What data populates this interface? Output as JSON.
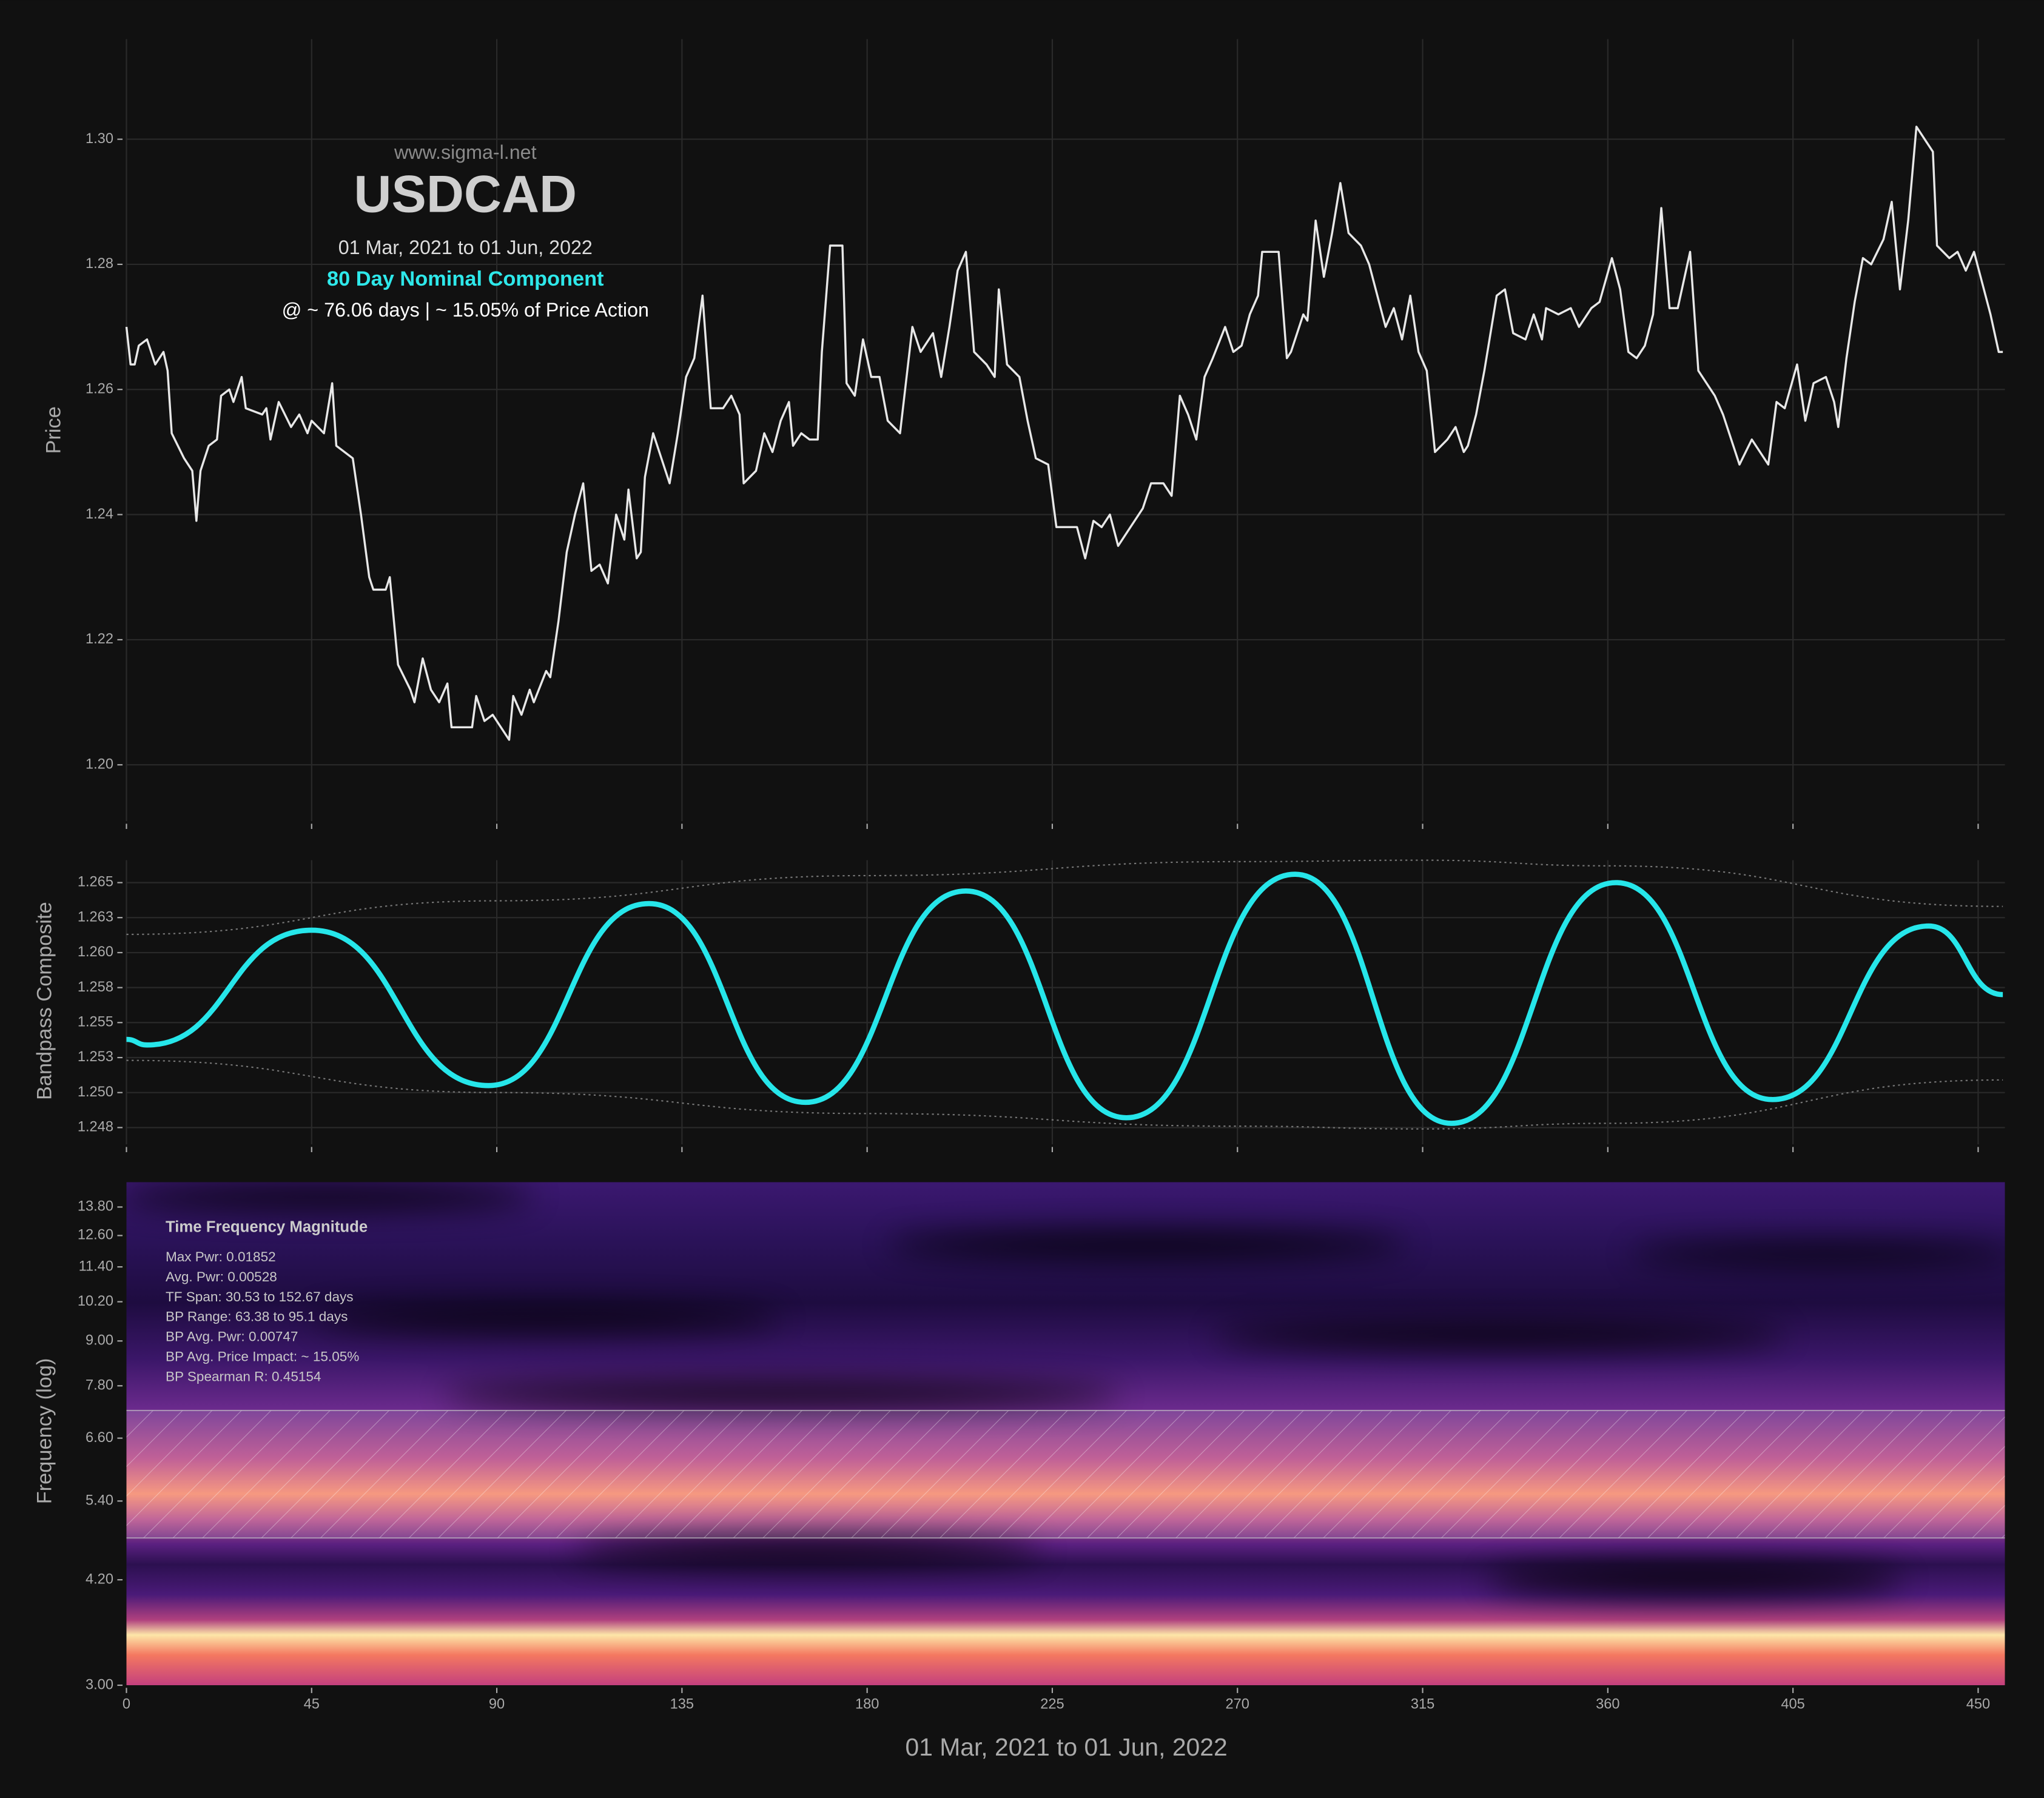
{
  "chart_data": [
    {
      "type": "line",
      "watermark": "www.sigma-l.net",
      "title": "USDCAD",
      "subtitle": "01 Mar, 2021 to 01 Jun, 2022",
      "component": "80 Day Nominal Component",
      "caption": "@ ~ 76.06 days | ~ 15.05% of Price Action",
      "ylabel": "Price",
      "grid": true,
      "xlim": [
        0,
        456.5
      ],
      "ylim": [
        1.191,
        1.316
      ],
      "yticks": [
        {
          "value": 1.2,
          "label": "1.20"
        },
        1.22,
        1.24,
        1.26,
        1.28,
        {
          "value": 1.3,
          "label": "1.30"
        }
      ],
      "series": [
        {
          "color": "#e8e8e8",
          "x": [
            0,
            1,
            2,
            3,
            5,
            7,
            9,
            10,
            11,
            14,
            16,
            17,
            18,
            20,
            22,
            23,
            25,
            26,
            28,
            29,
            33,
            34,
            35,
            37,
            40,
            42,
            44,
            45,
            48,
            50,
            51,
            55,
            57,
            59,
            60,
            63,
            64,
            66,
            69,
            70,
            72,
            74,
            76,
            78,
            79,
            81,
            83,
            84,
            85,
            87,
            89,
            91,
            93,
            94,
            96,
            98,
            99,
            102,
            103,
            105,
            107,
            109,
            111,
            113,
            115,
            117,
            119,
            121,
            122,
            124,
            125,
            126,
            128,
            130,
            132,
            134,
            136,
            138,
            140,
            142,
            145,
            147,
            149,
            150,
            153,
            155,
            157,
            159,
            161,
            162,
            164,
            166,
            168,
            169,
            171,
            174,
            175,
            177,
            179,
            181,
            183,
            185,
            188,
            191,
            193,
            196,
            198,
            200,
            202,
            204,
            206,
            209,
            211,
            212,
            214,
            217,
            219,
            221,
            224,
            226,
            229,
            231,
            233,
            235,
            237,
            239,
            241,
            244,
            245,
            247,
            249,
            252,
            254,
            256,
            258,
            260,
            262,
            264,
            267,
            269,
            271,
            273,
            275,
            276,
            280,
            282,
            283,
            286,
            287,
            289,
            291,
            293,
            295,
            297,
            300,
            302,
            304,
            306,
            308,
            310,
            312,
            314,
            316,
            318,
            321,
            323,
            325,
            326,
            328,
            330,
            333,
            335,
            337,
            340,
            342,
            344,
            345,
            348,
            351,
            353,
            356,
            358,
            361,
            363,
            365,
            367,
            369,
            371,
            373,
            375,
            377,
            380,
            382,
            384,
            386,
            388,
            390,
            392,
            395,
            397,
            399,
            401,
            403,
            406,
            408,
            410,
            413,
            415,
            416,
            418,
            420,
            422,
            424,
            427,
            429,
            431,
            433,
            435,
            437,
            439,
            440,
            443,
            445,
            447,
            449,
            451,
            453,
            455,
            456
          ],
          "values": [
            1.27,
            1.264,
            1.264,
            1.267,
            1.268,
            1.264,
            1.266,
            1.263,
            1.253,
            1.249,
            1.247,
            1.239,
            1.247,
            1.251,
            1.252,
            1.259,
            1.26,
            1.258,
            1.262,
            1.257,
            1.256,
            1.257,
            1.252,
            1.258,
            1.254,
            1.256,
            1.253,
            1.255,
            1.253,
            1.261,
            1.251,
            1.249,
            1.24,
            1.23,
            1.228,
            1.228,
            1.23,
            1.216,
            1.212,
            1.21,
            1.217,
            1.212,
            1.21,
            1.213,
            1.206,
            1.206,
            1.206,
            1.206,
            1.211,
            1.207,
            1.208,
            1.206,
            1.204,
            1.211,
            1.208,
            1.212,
            1.21,
            1.215,
            1.214,
            1.223,
            1.234,
            1.24,
            1.245,
            1.231,
            1.232,
            1.229,
            1.24,
            1.236,
            1.244,
            1.233,
            1.234,
            1.246,
            1.253,
            1.249,
            1.245,
            1.253,
            1.262,
            1.265,
            1.275,
            1.257,
            1.257,
            1.259,
            1.256,
            1.245,
            1.247,
            1.253,
            1.25,
            1.255,
            1.258,
            1.251,
            1.253,
            1.252,
            1.252,
            1.266,
            1.283,
            1.283,
            1.261,
            1.259,
            1.268,
            1.262,
            1.262,
            1.255,
            1.253,
            1.27,
            1.266,
            1.269,
            1.262,
            1.27,
            1.279,
            1.282,
            1.266,
            1.264,
            1.262,
            1.276,
            1.264,
            1.262,
            1.255,
            1.249,
            1.248,
            1.238,
            1.238,
            1.238,
            1.233,
            1.239,
            1.238,
            1.24,
            1.235,
            1.238,
            1.239,
            1.241,
            1.245,
            1.245,
            1.243,
            1.259,
            1.256,
            1.252,
            1.262,
            1.265,
            1.27,
            1.266,
            1.267,
            1.272,
            1.275,
            1.282,
            1.282,
            1.265,
            1.266,
            1.272,
            1.271,
            1.287,
            1.278,
            1.285,
            1.293,
            1.285,
            1.283,
            1.28,
            1.275,
            1.27,
            1.273,
            1.268,
            1.275,
            1.266,
            1.263,
            1.25,
            1.252,
            1.254,
            1.25,
            1.251,
            1.256,
            1.263,
            1.275,
            1.276,
            1.269,
            1.268,
            1.272,
            1.268,
            1.273,
            1.272,
            1.273,
            1.27,
            1.273,
            1.274,
            1.281,
            1.276,
            1.266,
            1.265,
            1.267,
            1.272,
            1.289,
            1.273,
            1.273,
            1.282,
            1.263,
            1.261,
            1.259,
            1.256,
            1.252,
            1.248,
            1.252,
            1.25,
            1.248,
            1.258,
            1.257,
            1.264,
            1.255,
            1.261,
            1.262,
            1.258,
            1.254,
            1.265,
            1.274,
            1.281,
            1.28,
            1.284,
            1.29,
            1.276,
            1.287,
            1.302,
            1.3,
            1.298,
            1.283,
            1.281,
            1.282,
            1.279,
            1.282,
            1.277,
            1.272,
            1.266,
            1.266
          ]
        }
      ]
    },
    {
      "type": "spline",
      "ylabel": "Bandpass Composite",
      "grid": true,
      "xlim": [
        0,
        456.5
      ],
      "ylim": [
        1.2463,
        1.2666
      ],
      "yticks": [
        {
          "value": 1.2475,
          "label": "1.248"
        },
        {
          "value": 1.25,
          "label": "1.250"
        },
        {
          "value": 1.2525,
          "label": "1.253"
        },
        {
          "value": 1.255,
          "label": "1.255"
        },
        {
          "value": 1.2575,
          "label": "1.258"
        },
        {
          "value": 1.26,
          "label": "1.260"
        },
        {
          "value": 1.2625,
          "label": "1.263"
        },
        {
          "value": 1.265,
          "label": "1.265"
        }
      ],
      "series": [
        {
          "color": "#26e6ea",
          "x": [
            0,
            5,
            45,
            88,
            127,
            165,
            204,
            243,
            284,
            322,
            362,
            400,
            438,
            456
          ],
          "values": [
            1.2538,
            1.2534,
            1.2616,
            1.2505,
            1.2635,
            1.2493,
            1.2644,
            1.2482,
            1.2656,
            1.2478,
            1.265,
            1.2495,
            1.2619,
            1.257
          ]
        },
        {
          "color": "#777777",
          "style": "dotted",
          "x": [
            0,
            90,
            180,
            270,
            315,
            360,
            456
          ],
          "values": [
            1.2613,
            1.2637,
            1.2655,
            1.2665,
            1.2666,
            1.2662,
            1.2633
          ]
        },
        {
          "color": "#777777",
          "style": "dotted",
          "x": [
            0,
            90,
            180,
            270,
            315,
            360,
            456
          ],
          "values": [
            1.2523,
            1.25,
            1.2485,
            1.2476,
            1.2474,
            1.2478,
            1.2509
          ]
        }
      ]
    },
    {
      "type": "heatmap",
      "ylabel": "Frequency (log)",
      "xlabel": "01 Mar, 2021 to 01 Jun, 2022",
      "log_y": true,
      "xlim": [
        0,
        456.5
      ],
      "ylim": [
        3.0,
        14.94
      ],
      "xticks": [
        0,
        45,
        90,
        135,
        180,
        225,
        270,
        315,
        360,
        405,
        450
      ],
      "yticks": [
        {
          "value": 3.0,
          "label": "3.00"
        },
        {
          "value": 4.2,
          "label": "4.20"
        },
        {
          "value": 5.4,
          "label": "5.40"
        },
        {
          "value": 6.6,
          "label": "6.60"
        },
        {
          "value": 7.8,
          "label": "7.80"
        },
        {
          "value": 9.0,
          "label": "9.00"
        },
        {
          "value": 10.2,
          "label": "10.20"
        },
        {
          "value": 11.4,
          "label": "11.40"
        },
        {
          "value": 12.6,
          "label": "12.60"
        },
        {
          "value": 13.8,
          "label": "13.80"
        }
      ],
      "band": [
        4.8,
        7.21
      ],
      "title": "Time Frequency Magnitude",
      "stats": [
        "Max Pwr: 0.01852",
        "Avg. Pwr: 0.00528",
        "TF Span: 30.53 to 152.67 days",
        "BP Range: 63.38 to 95.1 days",
        "BP Avg. Pwr: 0.00747",
        "BP Avg. Price Impact: ~ 15.05%",
        "BP Spearman R: 0.45154"
      ]
    }
  ]
}
